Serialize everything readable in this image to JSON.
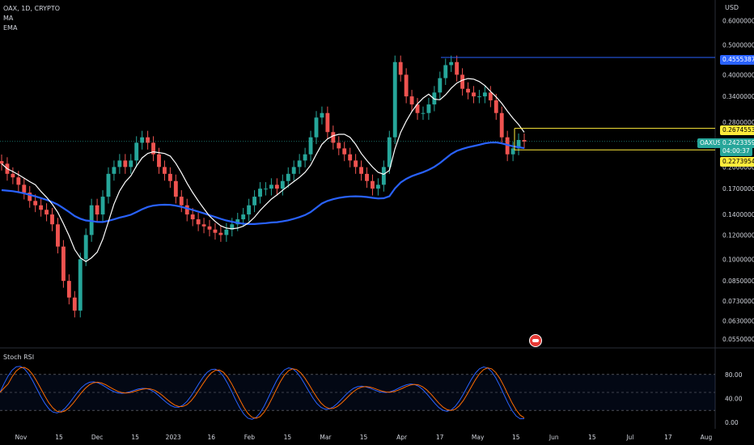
{
  "header": {
    "symbol_line": "OAX, 1D, CRYPTO",
    "indicator_1": "MA",
    "indicator_2": "EMA"
  },
  "price_axis": {
    "currency": "USD",
    "ticks": [
      "0.60000000",
      "0.50000000",
      "0.40000000",
      "0.34000000",
      "0.28000000",
      "0.20000000",
      "0.17000000",
      "0.14000000",
      "0.12000000",
      "0.10000000",
      "0.08500000",
      "0.07300000",
      "0.06300000",
      "0.05500000"
    ]
  },
  "badges": {
    "blue_level": "0.45553875",
    "yellow_top": "0.26745533",
    "symbol": "OAXUSD",
    "last_price": "0.24233593",
    "countdown": "04:00:37",
    "yellow_bottom": "0.22739542"
  },
  "oscillator": {
    "title": "Stoch RSI",
    "ticks": [
      "80.00",
      "40.00",
      "0.00"
    ]
  },
  "time_axis": {
    "labels": [
      "Nov",
      "15",
      "Dec",
      "15",
      "2023",
      "16",
      "Feb",
      "15",
      "Mar",
      "15",
      "Apr",
      "17",
      "May",
      "15",
      "Jun",
      "15",
      "Jul",
      "17",
      "Aug"
    ]
  },
  "colors": {
    "up": "#26a69a",
    "down": "#ef5350",
    "ma": "#ffffff",
    "ema": "#2962ff",
    "blue_line": "#2962ff",
    "yellow_line": "#ffeb3b",
    "stoch_k": "#2962ff",
    "stoch_d": "#ff6d00"
  },
  "chart_data": {
    "type": "candlestick",
    "title": "OAX, 1D, CRYPTO",
    "y_scale": "log",
    "ylim": [
      0.052,
      0.66
    ],
    "x_range_labels": [
      "Nov",
      "15",
      "Dec",
      "15",
      "2023",
      "16",
      "Feb",
      "15",
      "Mar",
      "15",
      "Apr",
      "17",
      "May",
      "15",
      "Jun",
      "15",
      "Jul",
      "17",
      "Aug"
    ],
    "close_series_approx": [
      0.205,
      0.19,
      0.185,
      0.175,
      0.165,
      0.155,
      0.15,
      0.145,
      0.14,
      0.13,
      0.11,
      0.085,
      0.075,
      0.068,
      0.1,
      0.12,
      0.15,
      0.14,
      0.16,
      0.19,
      0.2,
      0.21,
      0.2,
      0.21,
      0.24,
      0.25,
      0.24,
      0.22,
      0.2,
      0.19,
      0.18,
      0.16,
      0.15,
      0.14,
      0.135,
      0.13,
      0.128,
      0.125,
      0.122,
      0.12,
      0.125,
      0.13,
      0.135,
      0.14,
      0.15,
      0.16,
      0.17,
      0.17,
      0.175,
      0.17,
      0.18,
      0.19,
      0.2,
      0.21,
      0.22,
      0.25,
      0.29,
      0.3,
      0.26,
      0.24,
      0.23,
      0.22,
      0.21,
      0.2,
      0.19,
      0.18,
      0.17,
      0.175,
      0.2,
      0.25,
      0.44,
      0.4,
      0.34,
      0.32,
      0.3,
      0.3,
      0.32,
      0.35,
      0.39,
      0.43,
      0.44,
      0.4,
      0.36,
      0.35,
      0.34,
      0.34,
      0.35,
      0.33,
      0.3,
      0.25,
      0.22,
      0.23,
      0.245,
      0.242
    ],
    "horizontal_levels": [
      0.45553875,
      0.26745533,
      0.22739542
    ],
    "last_price": 0.24233593,
    "series": [
      {
        "name": "MA",
        "kind": "line"
      },
      {
        "name": "EMA",
        "kind": "line"
      }
    ],
    "oscillator": {
      "name": "Stoch RSI",
      "levels": [
        80,
        40,
        0
      ],
      "series": [
        {
          "name": "K"
        },
        {
          "name": "D"
        }
      ]
    }
  }
}
